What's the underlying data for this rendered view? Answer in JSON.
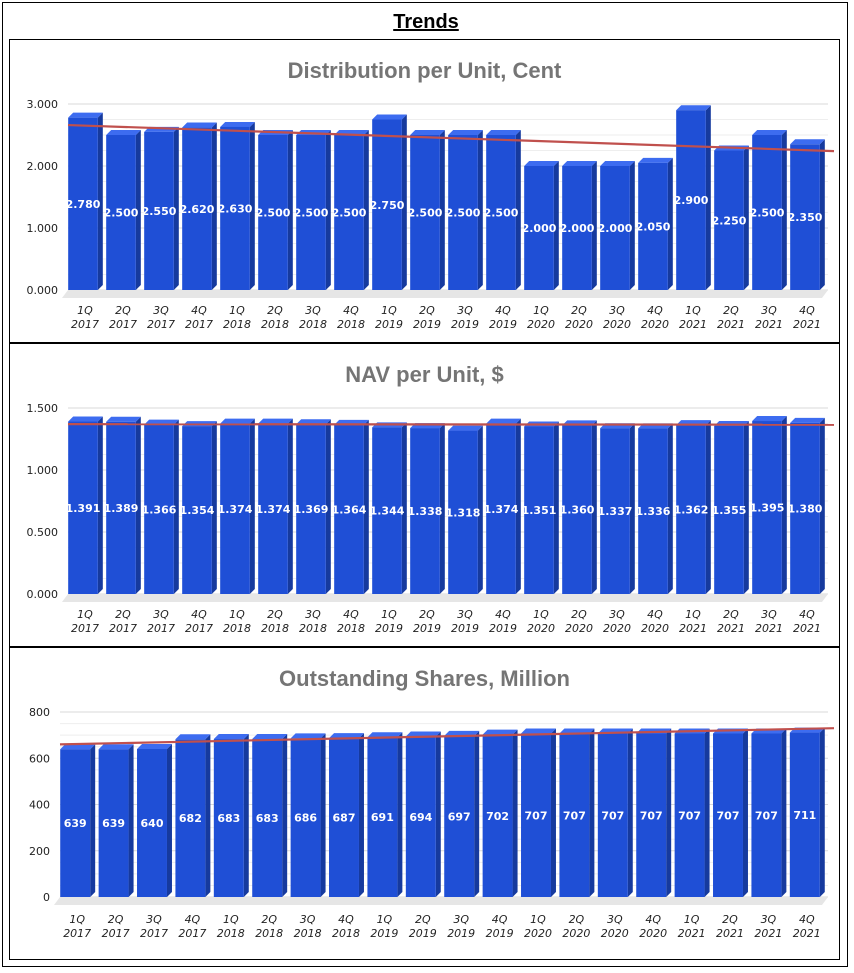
{
  "page_title": "Trends",
  "colors": {
    "bar_front": "#1f4fd6",
    "bar_side": "#163a9e",
    "bar_top": "#3d6cf0",
    "trendline": "#c0504d",
    "grid": "#d9d9d9",
    "title": "#757575"
  },
  "chart_data": [
    {
      "type": "bar",
      "title": "Distribution per Unit, Cent",
      "categories": [
        "1Q 2017",
        "2Q 2017",
        "3Q 2017",
        "4Q 2017",
        "1Q 2018",
        "2Q 2018",
        "3Q 2018",
        "4Q 2018",
        "1Q 2019",
        "2Q 2019",
        "3Q 2019",
        "4Q 2019",
        "1Q 2020",
        "2Q 2020",
        "3Q 2020",
        "4Q 2020",
        "1Q 2021",
        "2Q 2021",
        "3Q 2021",
        "4Q 2021"
      ],
      "values": [
        2.78,
        2.5,
        2.55,
        2.62,
        2.63,
        2.5,
        2.5,
        2.5,
        2.75,
        2.5,
        2.5,
        2.5,
        2.0,
        2.0,
        2.0,
        2.05,
        2.9,
        2.25,
        2.5,
        2.35
      ],
      "value_labels": [
        "2.780",
        "2.500",
        "2.550",
        "2.620",
        "2.630",
        "2.500",
        "2.500",
        "2.500",
        "2.750",
        "2.500",
        "2.500",
        "2.500",
        "2.000",
        "2.000",
        "2.000",
        "2.050",
        "2.900",
        "2.250",
        "2.500",
        "2.350"
      ],
      "ylim": [
        0,
        3
      ],
      "yticks": [
        "0.000",
        "1.000",
        "2.000",
        "3.000"
      ],
      "ytick_values": [
        0,
        1,
        2,
        3
      ],
      "trendline": [
        2.66,
        2.24
      ]
    },
    {
      "type": "bar",
      "title": "NAV per Unit, $",
      "categories": [
        "1Q 2017",
        "2Q 2017",
        "3Q 2017",
        "4Q 2017",
        "1Q 2018",
        "2Q 2018",
        "3Q 2018",
        "4Q 2018",
        "1Q 2019",
        "2Q 2019",
        "3Q 2019",
        "4Q 2019",
        "1Q 2020",
        "2Q 2020",
        "3Q 2020",
        "4Q 2020",
        "1Q 2021",
        "2Q 2021",
        "3Q 2021",
        "4Q 2021"
      ],
      "values": [
        1.391,
        1.389,
        1.366,
        1.354,
        1.374,
        1.374,
        1.369,
        1.364,
        1.344,
        1.338,
        1.318,
        1.374,
        1.351,
        1.36,
        1.337,
        1.336,
        1.362,
        1.355,
        1.395,
        1.38
      ],
      "value_labels": [
        "1.391",
        "1.389",
        "1.366",
        "1.354",
        "1.374",
        "1.374",
        "1.369",
        "1.364",
        "1.344",
        "1.338",
        "1.318",
        "1.374",
        "1.351",
        "1.360",
        "1.337",
        "1.336",
        "1.362",
        "1.355",
        "1.395",
        "1.380"
      ],
      "ylim": [
        0,
        1.5
      ],
      "yticks": [
        "0.000",
        "0.500",
        "1.000",
        "1.500"
      ],
      "ytick_values": [
        0,
        0.5,
        1,
        1.5
      ],
      "trendline": [
        1.37,
        1.365
      ]
    },
    {
      "type": "bar",
      "title": "Outstanding Shares, Million",
      "categories": [
        "1Q 2017",
        "2Q 2017",
        "3Q 2017",
        "4Q 2017",
        "1Q 2018",
        "2Q 2018",
        "3Q 2018",
        "4Q 2018",
        "1Q 2019",
        "2Q 2019",
        "3Q 2019",
        "4Q 2019",
        "1Q 2020",
        "2Q 2020",
        "3Q 2020",
        "4Q 2020",
        "1Q 2021",
        "2Q 2021",
        "3Q 2021",
        "4Q 2021"
      ],
      "values": [
        639,
        639,
        640,
        682,
        683,
        683,
        686,
        687,
        691,
        694,
        697,
        702,
        707,
        707,
        707,
        707,
        707,
        707,
        707,
        711
      ],
      "value_labels": [
        "639",
        "639",
        "640",
        "682",
        "683",
        "683",
        "686",
        "687",
        "691",
        "694",
        "697",
        "702",
        "707",
        "707",
        "707",
        "707",
        "707",
        "707",
        "707",
        "711"
      ],
      "ylim": [
        0,
        800
      ],
      "yticks": [
        "0",
        "200",
        "400",
        "600",
        "800"
      ],
      "ytick_values": [
        0,
        200,
        400,
        600,
        800
      ],
      "trendline": [
        660,
        730
      ]
    }
  ]
}
